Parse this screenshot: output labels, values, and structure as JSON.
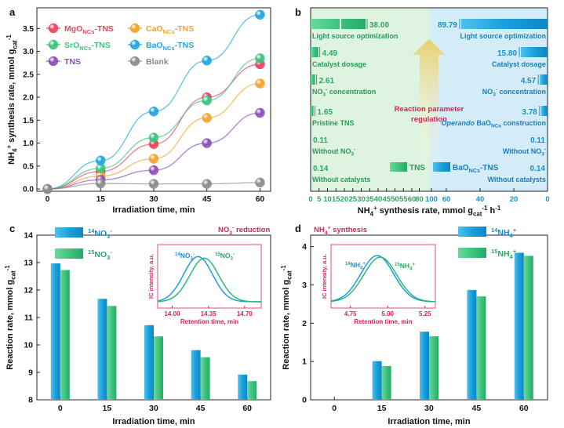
{
  "colors": {
    "MgO": "#e8455e",
    "CaO": "#f5a32b",
    "SrO": "#3ec47f",
    "BaO": "#22a6de",
    "TNS": "#8e4fb8",
    "Blank": "#8c8c8c",
    "blue": "#22a6de",
    "green": "#3ec47f",
    "accent": "#d6245b",
    "arrow": "#e7d070",
    "bgGreen": "#dff4e0",
    "bgBlue": "#d4ecf8"
  },
  "chart_data": [
    {
      "panel": "a",
      "type": "line",
      "x": [
        0,
        15,
        30,
        45,
        60
      ],
      "xlabel": "Irradiation time, min",
      "ylabel": "NH4+ synthesis rate, mmol gcat-1",
      "xticks": [
        "0",
        "15",
        "30",
        "45",
        "60"
      ],
      "yticks": [
        "0.0",
        "0.5",
        "1.0",
        "1.5",
        "2.0",
        "2.5",
        "3.0",
        "3.5"
      ],
      "xlim": [
        -3,
        63
      ],
      "ylim": [
        -0.05,
        3.95
      ],
      "legend_position": "top-left",
      "series": [
        {
          "name": "MgONCs-TNS",
          "key": "MgO",
          "values": [
            0,
            0.38,
            0.98,
            2.0,
            2.72
          ]
        },
        {
          "name": "CaONCs-TNS",
          "key": "CaO",
          "values": [
            0,
            0.28,
            0.66,
            1.55,
            2.3
          ]
        },
        {
          "name": "SrONCs-TNS",
          "key": "SrO",
          "values": [
            0,
            0.45,
            1.12,
            1.93,
            2.85
          ]
        },
        {
          "name": "BaONCs-TNS",
          "key": "BaO",
          "values": [
            0,
            0.62,
            1.69,
            2.8,
            3.8
          ]
        },
        {
          "name": "TNS",
          "key": "TNS",
          "values": [
            0,
            0.2,
            0.41,
            1.0,
            1.66
          ]
        },
        {
          "name": "Blank",
          "key": "Blank",
          "values": [
            0,
            0.12,
            0.11,
            0.11,
            0.14
          ]
        }
      ]
    },
    {
      "panel": "b",
      "type": "bar",
      "xlabel": "NH4+ synthesis rate, mmol gcat-1 h-1",
      "xticks": [
        "0",
        "5",
        "10",
        "15",
        "20",
        "25",
        "30",
        "35",
        "40",
        "45",
        "50",
        "55",
        "60",
        "80",
        "100",
        "60",
        "40",
        "20",
        "0"
      ],
      "annotation": "Reaction parameter regulation",
      "legend": [
        "TNS",
        "BaONCs-TNS"
      ],
      "left_series": {
        "name": "TNS",
        "categories": [
          "Light source optimization",
          "Catalyst dosage",
          "NO3- concentration",
          "Pristine TNS",
          "Without NO3-",
          "Without catalysts"
        ],
        "values": [
          38.0,
          4.49,
          2.61,
          1.65,
          0.11,
          0.14
        ],
        "value_labels": [
          "38.00",
          "4.49",
          "2.61",
          "1.65",
          "0.11",
          "0.14"
        ]
      },
      "right_series": {
        "name": "BaONCs-TNS",
        "categories": [
          "Light source optimization",
          "Catalyst dosage",
          "NO3- concentration",
          "Operando BaONCs construction",
          "Without NO3-",
          "Without catalysts"
        ],
        "values": [
          89.79,
          15.8,
          4.57,
          3.78,
          0.11,
          0.14
        ],
        "value_labels": [
          "89.79",
          "15.80",
          "4.57",
          "3.78",
          "0.11",
          "0.14"
        ]
      }
    },
    {
      "panel": "c",
      "type": "bar",
      "title": "NO3- reduction",
      "categories": [
        "0",
        "15",
        "30",
        "45",
        "60"
      ],
      "xlabel": "Irradiation time, min",
      "ylabel": "Reaction rate, mmol gcat-1",
      "ylim": [
        8,
        14
      ],
      "yticks": [
        "8",
        "9",
        "10",
        "11",
        "12",
        "13",
        "14"
      ],
      "legend_position": "top-left",
      "series": [
        {
          "name": "14NO3-",
          "key": "blue",
          "values": [
            12.97,
            11.68,
            10.72,
            9.81,
            8.92
          ]
        },
        {
          "name": "15NO3-",
          "key": "green",
          "values": [
            12.73,
            11.42,
            10.31,
            9.55,
            8.68
          ]
        }
      ],
      "inset": {
        "type": "line",
        "xlabel": "Retention time, min",
        "ylabel": "IC intensity, a.u.",
        "xticks": [
          "14.00",
          "14.35",
          "14.70"
        ],
        "xlim": [
          13.86,
          14.86
        ],
        "peak_labels": [
          "14NO3-",
          "15NO3-"
        ],
        "peaks": [
          14.25,
          14.31
        ]
      }
    },
    {
      "panel": "d",
      "type": "bar",
      "title": "NH4+ synthesis",
      "categories": [
        "0",
        "15",
        "30",
        "45",
        "60"
      ],
      "xlabel": "Irradiation time, min",
      "ylabel": "Reaction rate, mmol gcat-1",
      "ylim": [
        0,
        4.3
      ],
      "yticks": [
        "0",
        "1",
        "2",
        "3",
        "4"
      ],
      "legend_position": "top-right",
      "series": [
        {
          "name": "14NH4+",
          "key": "blue",
          "values": [
            0,
            1.01,
            1.78,
            2.87,
            3.84
          ]
        },
        {
          "name": "15NH4+",
          "key": "green",
          "values": [
            0,
            0.88,
            1.66,
            2.7,
            3.76
          ]
        }
      ],
      "inset": {
        "type": "line",
        "xlabel": "Retention time, min",
        "ylabel": "IC intensity, a.u.",
        "xticks": [
          "4.75",
          "5.00",
          "5.25"
        ],
        "xlim": [
          4.62,
          5.32
        ],
        "peak_labels": [
          "14NH4+",
          "15NH4+"
        ],
        "peaks": [
          4.93,
          4.95
        ]
      }
    }
  ]
}
